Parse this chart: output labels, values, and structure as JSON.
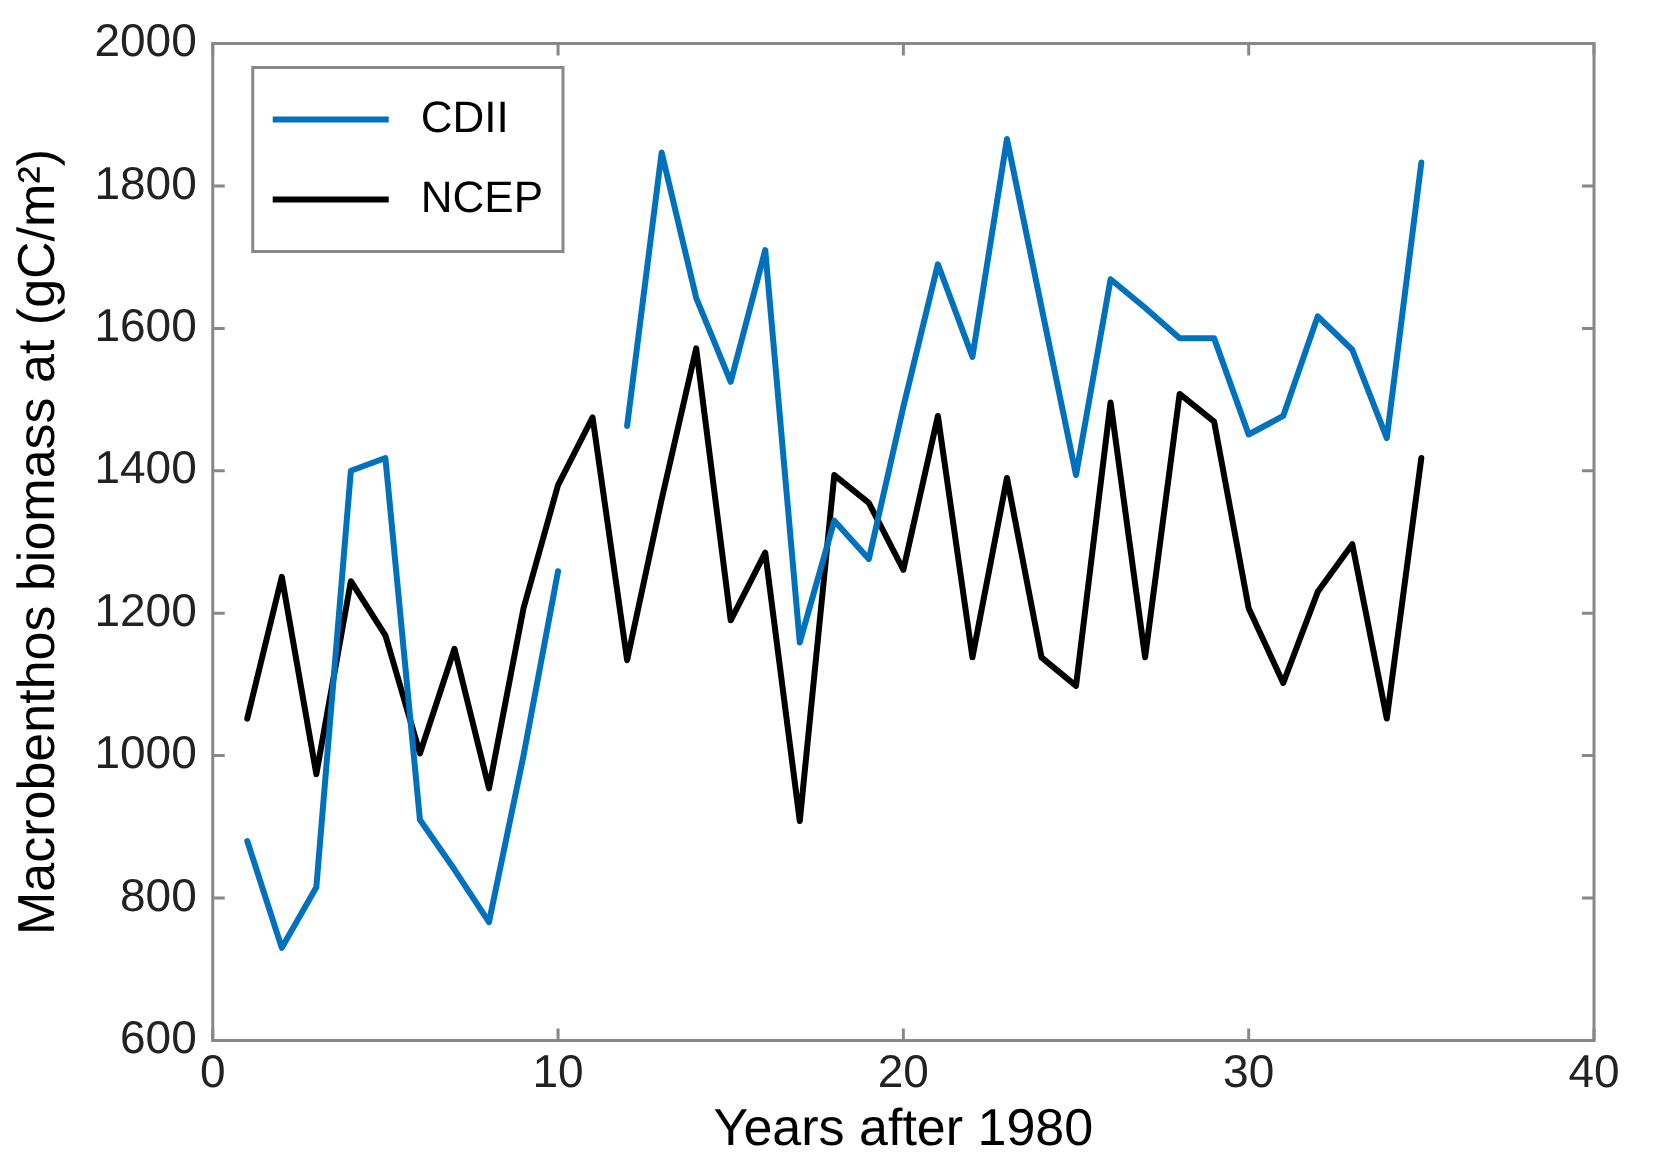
{
  "chart_data": {
    "type": "line",
    "xlabel": "Years after 1980",
    "ylabel": "Macrobenthos biomass at (gC/m²)",
    "x": [
      1,
      2,
      3,
      4,
      5,
      6,
      7,
      8,
      9,
      10,
      11,
      12,
      13,
      14,
      15,
      16,
      17,
      18,
      19,
      20,
      21,
      22,
      23,
      24,
      25,
      26,
      27,
      28,
      29,
      30,
      31,
      32,
      33,
      34,
      35
    ],
    "series": [
      {
        "name": "CDII",
        "color": "#0072bd",
        "values": [
          880,
          730,
          815,
          1400,
          1418,
          910,
          840,
          766,
          1000,
          1259,
          null,
          1463,
          1847,
          1643,
          1525,
          1710,
          1159,
          1330,
          1276,
          1490,
          1690,
          1560,
          1866,
          1630,
          1394,
          1669,
          1629,
          1586,
          1586,
          1451,
          1477,
          1617,
          1570,
          1446,
          1833
        ]
      },
      {
        "name": "NCEP",
        "color": "#000000",
        "values": [
          1052,
          1251,
          974,
          1245,
          1169,
          1003,
          1150,
          954,
          1207,
          1380,
          1475,
          1134,
          1360,
          1572,
          1190,
          1285,
          908,
          1394,
          1355,
          1261,
          1477,
          1138,
          1390,
          1138,
          1098,
          1496,
          1138,
          1508,
          1469,
          1207,
          1102,
          1230,
          1297,
          1052,
          1418
        ]
      }
    ],
    "xlim": [
      0,
      40
    ],
    "xticks": [
      0,
      10,
      20,
      30,
      40
    ],
    "ylim": [
      600,
      2000
    ],
    "yticks": [
      600,
      800,
      1000,
      1200,
      1400,
      1600,
      1800,
      2000
    ],
    "grid": false,
    "legend": "top left",
    "marker": "none",
    "line_style": "solid"
  }
}
